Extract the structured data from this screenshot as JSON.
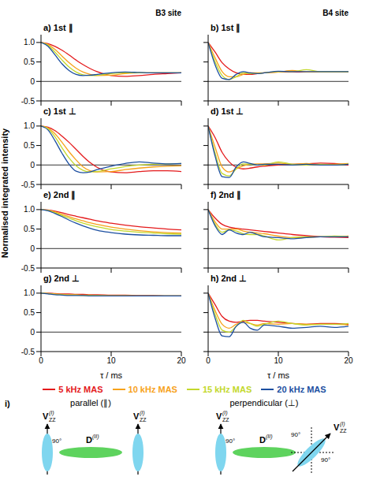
{
  "ylabel": "Normalised integrated intensity",
  "chart_data": [
    {
      "type": "line",
      "title": "a) 1st ∥",
      "annotation": "B3 site",
      "x": [
        0,
        1,
        2,
        3,
        4,
        5,
        6,
        7,
        8,
        10,
        12,
        14,
        16,
        18,
        20
      ],
      "xlim": [
        0,
        20
      ],
      "xticks": [
        0,
        10,
        20
      ],
      "ylim": [
        -0.5,
        1.2
      ],
      "yticks": [
        {
          "value": 1,
          "label": "1.0"
        },
        0.5,
        0,
        -0.5
      ],
      "hlines": [
        0
      ],
      "tick_labels": "y",
      "series": [
        {
          "name": "5 kHz MAS",
          "color": "#e41a1c",
          "values": [
            1,
            0.97,
            0.9,
            0.8,
            0.68,
            0.55,
            0.43,
            0.33,
            0.25,
            0.15,
            0.13,
            0.15,
            0.18,
            0.2,
            0.22
          ]
        },
        {
          "name": "10 kHz MAS",
          "color": "#f7a21b",
          "values": [
            1,
            0.95,
            0.82,
            0.65,
            0.48,
            0.34,
            0.24,
            0.18,
            0.15,
            0.16,
            0.2,
            0.22,
            0.22,
            0.22,
            0.22
          ]
        },
        {
          "name": "15 kHz MAS",
          "color": "#c3d82c",
          "values": [
            1,
            0.93,
            0.75,
            0.55,
            0.37,
            0.24,
            0.17,
            0.15,
            0.16,
            0.2,
            0.22,
            0.22,
            0.22,
            0.22,
            0.22
          ]
        },
        {
          "name": "20 kHz MAS",
          "color": "#1c4fa1",
          "values": [
            1,
            0.9,
            0.68,
            0.45,
            0.28,
            0.18,
            0.15,
            0.16,
            0.18,
            0.22,
            0.24,
            0.23,
            0.22,
            0.22,
            0.22
          ]
        }
      ]
    },
    {
      "type": "line",
      "title": "b) 1st ∥",
      "annotation": "B4 site",
      "x": [
        0,
        1,
        2,
        3,
        4,
        5,
        6,
        7,
        8,
        10,
        12,
        14,
        16,
        18,
        20
      ],
      "xlim": [
        0,
        20
      ],
      "xticks": [
        0,
        10,
        20
      ],
      "ylim": [
        -0.5,
        1.2
      ],
      "yticks": [
        {
          "value": 1,
          "label": "1.0"
        },
        0.5,
        0,
        -0.5
      ],
      "hlines": [
        0
      ],
      "tick_labels": false,
      "series": [
        {
          "name": "5 kHz MAS",
          "color": "#e41a1c",
          "values": [
            1,
            0.75,
            0.48,
            0.32,
            0.22,
            0.18,
            0.18,
            0.2,
            0.22,
            0.24,
            0.24,
            0.24,
            0.24,
            0.24,
            0.24
          ]
        },
        {
          "name": "10 kHz MAS",
          "color": "#f7a21b",
          "values": [
            1,
            0.6,
            0.25,
            0.12,
            0.12,
            0.18,
            0.22,
            0.22,
            0.22,
            0.24,
            0.28,
            0.24,
            0.24,
            0.24,
            0.24
          ]
        },
        {
          "name": "15 kHz MAS",
          "color": "#c3d82c",
          "values": [
            1,
            0.5,
            0.15,
            0.05,
            0.12,
            0.22,
            0.2,
            0.2,
            0.22,
            0.25,
            0.25,
            0.3,
            0.25,
            0.25,
            0.25
          ]
        },
        {
          "name": "20 kHz MAS",
          "color": "#1c4fa1",
          "values": [
            1,
            0.42,
            0.08,
            0.05,
            0.18,
            0.25,
            0.22,
            0.2,
            0.22,
            0.26,
            0.25,
            0.25,
            0.25,
            0.25,
            0.25
          ]
        }
      ]
    },
    {
      "type": "line",
      "title": "c) 1st ⊥",
      "x": [
        0,
        1,
        2,
        3,
        4,
        5,
        6,
        7,
        8,
        10,
        12,
        14,
        16,
        18,
        20
      ],
      "xlim": [
        0,
        20
      ],
      "xticks": [
        0,
        10,
        20
      ],
      "ylim": [
        -0.5,
        1.2
      ],
      "yticks": [
        {
          "value": 1,
          "label": "1.0"
        },
        0.5,
        0,
        -0.5
      ],
      "hlines": [
        0
      ],
      "tick_labels": "y",
      "series": [
        {
          "name": "5 kHz MAS",
          "color": "#e41a1c",
          "values": [
            1,
            0.97,
            0.88,
            0.74,
            0.58,
            0.4,
            0.22,
            0.06,
            -0.06,
            -0.18,
            -0.2,
            -0.17,
            -0.15,
            -0.15,
            -0.17
          ]
        },
        {
          "name": "10 kHz MAS",
          "color": "#f7a21b",
          "values": [
            1,
            0.95,
            0.8,
            0.58,
            0.34,
            0.13,
            -0.05,
            -0.15,
            -0.18,
            -0.17,
            -0.12,
            -0.08,
            -0.05,
            -0.03,
            -0.02
          ]
        },
        {
          "name": "15 kHz MAS",
          "color": "#c3d82c",
          "values": [
            1,
            0.93,
            0.72,
            0.44,
            0.18,
            -0.02,
            -0.14,
            -0.18,
            -0.17,
            -0.1,
            -0.04,
            0,
            0.02,
            0.03,
            0.04
          ]
        },
        {
          "name": "20 kHz MAS",
          "color": "#1c4fa1",
          "values": [
            1,
            0.9,
            0.62,
            0.3,
            0.02,
            -0.16,
            -0.2,
            -0.18,
            -0.12,
            -0.03,
            0.04,
            0.08,
            0.05,
            0.03,
            0.04
          ]
        }
      ]
    },
    {
      "type": "line",
      "title": "d) 1st ⊥",
      "x": [
        0,
        1,
        2,
        3,
        4,
        5,
        6,
        7,
        8,
        10,
        12,
        14,
        16,
        18,
        20
      ],
      "xlim": [
        0,
        20
      ],
      "xticks": [
        0,
        10,
        20
      ],
      "ylim": [
        -0.5,
        1.2
      ],
      "yticks": [
        {
          "value": 1,
          "label": "1.0"
        },
        0.5,
        0,
        -0.5
      ],
      "hlines": [
        0
      ],
      "tick_labels": false,
      "series": [
        {
          "name": "5 kHz MAS",
          "color": "#e41a1c",
          "values": [
            1,
            0.7,
            0.32,
            0.08,
            -0.06,
            -0.1,
            -0.08,
            -0.05,
            -0.03,
            0,
            0.02,
            0.03,
            0.05,
            0.04,
            0
          ]
        },
        {
          "name": "10 kHz MAS",
          "color": "#f7a21b",
          "values": [
            1,
            0.45,
            -0.05,
            -0.18,
            -0.1,
            -0.02,
            0.02,
            0.03,
            0.03,
            0.05,
            0.02,
            0.04,
            0,
            0.02,
            0.04
          ]
        },
        {
          "name": "15 kHz MAS",
          "color": "#c3d82c",
          "values": [
            1,
            0.3,
            -0.22,
            -0.28,
            -0.1,
            0.03,
            0.02,
            0,
            0,
            0.08,
            0.02,
            0,
            0.02,
            0,
            0.03
          ]
        },
        {
          "name": "20 kHz MAS",
          "color": "#1c4fa1",
          "values": [
            1,
            0.22,
            -0.3,
            -0.32,
            -0.05,
            0.08,
            0.04,
            0,
            0.02,
            0.02,
            0,
            0.02,
            0,
            0,
            0.02
          ]
        }
      ]
    },
    {
      "type": "line",
      "title": "e) 2nd ∥",
      "x": [
        0,
        1,
        2,
        3,
        4,
        5,
        6,
        7,
        8,
        10,
        12,
        14,
        16,
        18,
        20
      ],
      "xlim": [
        0,
        20
      ],
      "xticks": [
        0,
        10,
        20
      ],
      "ylim": [
        -0.5,
        1.2
      ],
      "yticks": [
        {
          "value": 1,
          "label": "1.0"
        },
        0.5,
        0,
        -0.5
      ],
      "hlines": [
        0
      ],
      "tick_labels": "y",
      "series": [
        {
          "name": "5 kHz MAS",
          "color": "#e41a1c",
          "values": [
            1,
            0.99,
            0.96,
            0.92,
            0.87,
            0.83,
            0.79,
            0.75,
            0.71,
            0.65,
            0.6,
            0.56,
            0.53,
            0.5,
            0.48
          ]
        },
        {
          "name": "10 kHz MAS",
          "color": "#f7a21b",
          "values": [
            1,
            0.98,
            0.94,
            0.88,
            0.82,
            0.76,
            0.71,
            0.66,
            0.62,
            0.55,
            0.5,
            0.46,
            0.43,
            0.41,
            0.4
          ]
        },
        {
          "name": "15 kHz MAS",
          "color": "#c3d82c",
          "values": [
            1,
            0.98,
            0.92,
            0.85,
            0.78,
            0.71,
            0.65,
            0.6,
            0.56,
            0.49,
            0.45,
            0.42,
            0.4,
            0.38,
            0.37
          ]
        },
        {
          "name": "20 kHz MAS",
          "color": "#1c4fa1",
          "values": [
            1,
            0.97,
            0.9,
            0.82,
            0.73,
            0.65,
            0.58,
            0.52,
            0.47,
            0.41,
            0.37,
            0.35,
            0.34,
            0.33,
            0.33
          ]
        }
      ]
    },
    {
      "type": "line",
      "title": "f) 2nd ∥",
      "x": [
        0,
        1,
        2,
        3,
        4,
        5,
        6,
        7,
        8,
        10,
        12,
        14,
        16,
        18,
        20
      ],
      "xlim": [
        0,
        20
      ],
      "xticks": [
        0,
        10,
        20
      ],
      "ylim": [
        -0.5,
        1.2
      ],
      "yticks": [
        {
          "value": 1,
          "label": "1.0"
        },
        0.5,
        0,
        -0.5
      ],
      "hlines": [
        0
      ],
      "tick_labels": false,
      "series": [
        {
          "name": "5 kHz MAS",
          "color": "#e41a1c",
          "values": [
            1,
            0.78,
            0.62,
            0.55,
            0.52,
            0.5,
            0.48,
            0.46,
            0.44,
            0.4,
            0.36,
            0.33,
            0.3,
            0.29,
            0.28
          ]
        },
        {
          "name": "10 kHz MAS",
          "color": "#f7a21b",
          "values": [
            1,
            0.68,
            0.5,
            0.5,
            0.5,
            0.45,
            0.42,
            0.4,
            0.38,
            0.32,
            0.28,
            0.28,
            0.3,
            0.3,
            0.32
          ]
        },
        {
          "name": "15 kHz MAS",
          "color": "#c3d82c",
          "values": [
            1,
            0.62,
            0.42,
            0.48,
            0.45,
            0.38,
            0.36,
            0.36,
            0.32,
            0.22,
            0.28,
            0.3,
            0.3,
            0.32,
            0.3
          ]
        },
        {
          "name": "20 kHz MAS",
          "color": "#1c4fa1",
          "values": [
            1,
            0.58,
            0.36,
            0.48,
            0.4,
            0.36,
            0.42,
            0.36,
            0.3,
            0.28,
            0.25,
            0.28,
            0.3,
            0.3,
            0.3
          ]
        }
      ]
    },
    {
      "type": "line",
      "title": "g) 2nd ⊥",
      "xlabel": "τ / ms",
      "x": [
        0,
        1,
        2,
        3,
        4,
        5,
        6,
        7,
        8,
        10,
        12,
        14,
        16,
        18,
        20
      ],
      "xlim": [
        0,
        20
      ],
      "xticks": [
        0,
        10,
        20
      ],
      "ylim": [
        -0.5,
        1.2
      ],
      "yticks": [
        {
          "value": 1,
          "label": "1.0"
        },
        0.5,
        0,
        -0.5
      ],
      "hlines": [
        0
      ],
      "series": [
        {
          "name": "5 kHz MAS",
          "color": "#e41a1c",
          "values": [
            1,
            1,
            0.99,
            0.98,
            0.98,
            0.97,
            0.97,
            0.96,
            0.96,
            0.95,
            0.95,
            0.94,
            0.94,
            0.93,
            0.93
          ]
        },
        {
          "name": "10 kHz MAS",
          "color": "#f7a21b",
          "values": [
            1,
            0.99,
            0.98,
            0.97,
            0.96,
            0.96,
            0.95,
            0.95,
            0.94,
            0.94,
            0.94,
            0.93,
            0.93,
            0.93,
            0.93
          ]
        },
        {
          "name": "15 kHz MAS",
          "color": "#c3d82c",
          "values": [
            1,
            0.99,
            0.97,
            0.96,
            0.95,
            0.95,
            0.94,
            0.94,
            0.94,
            0.93,
            0.93,
            0.93,
            0.93,
            0.93,
            0.93
          ]
        },
        {
          "name": "20 kHz MAS",
          "color": "#1c4fa1",
          "values": [
            1,
            0.98,
            0.96,
            0.95,
            0.94,
            0.94,
            0.94,
            0.93,
            0.93,
            0.93,
            0.93,
            0.93,
            0.93,
            0.93,
            0.93
          ]
        }
      ]
    },
    {
      "type": "line",
      "title": "h) 2nd ⊥",
      "xlabel": "τ / ms",
      "legend": "bottom",
      "x": [
        0,
        1,
        2,
        3,
        4,
        5,
        6,
        7,
        8,
        10,
        12,
        14,
        16,
        18,
        20
      ],
      "xlim": [
        0,
        20
      ],
      "xticks": [
        0,
        10,
        20
      ],
      "ylim": [
        -0.5,
        1.2
      ],
      "yticks": [
        {
          "value": 1,
          "label": "1.0"
        },
        0.5,
        0,
        -0.5
      ],
      "hlines": [
        0
      ],
      "tick_labels": "x",
      "series": [
        {
          "name": "5 kHz MAS",
          "color": "#e41a1c",
          "values": [
            1,
            0.7,
            0.4,
            0.28,
            0.25,
            0.28,
            0.3,
            0.3,
            0.28,
            0.25,
            0.22,
            0.2,
            0.22,
            0.22,
            0.2
          ]
        },
        {
          "name": "10 kHz MAS",
          "color": "#f7a21b",
          "values": [
            1,
            0.55,
            0.2,
            0.1,
            0.2,
            0.25,
            0.22,
            0.18,
            0.22,
            0.2,
            0.22,
            0.2,
            0.2,
            0.2,
            0.18
          ]
        },
        {
          "name": "15 kHz MAS",
          "color": "#c3d82c",
          "values": [
            1,
            0.45,
            0.05,
            0,
            0.15,
            0.3,
            0.22,
            0.15,
            0.2,
            0.28,
            0.22,
            0.18,
            0.2,
            0.2,
            0.22
          ]
        },
        {
          "name": "20 kHz MAS",
          "color": "#1c4fa1",
          "values": [
            1,
            0.35,
            -0.1,
            -0.12,
            0.15,
            0.25,
            0.1,
            0.05,
            0.18,
            0.15,
            0.1,
            0.12,
            0.15,
            0.12,
            0.15
          ]
        }
      ]
    }
  ],
  "diagram": {
    "label": "i)",
    "panels": [
      {
        "title": "parallel (∥)",
        "vector": {
          "symbol": "V",
          "sub": "ZZ",
          "sup": "(I)"
        },
        "coupling": {
          "symbol": "D",
          "sup": "(II)"
        },
        "angles": [
          "90°"
        ]
      },
      {
        "title": "perpendicular (⊥)",
        "vector": {
          "symbol": "V",
          "sub": "ZZ",
          "sup": "(I)"
        },
        "coupling": {
          "symbol": "D",
          "sup": "(II)"
        },
        "angles": [
          "90°",
          "90°",
          "90°"
        ]
      }
    ]
  }
}
